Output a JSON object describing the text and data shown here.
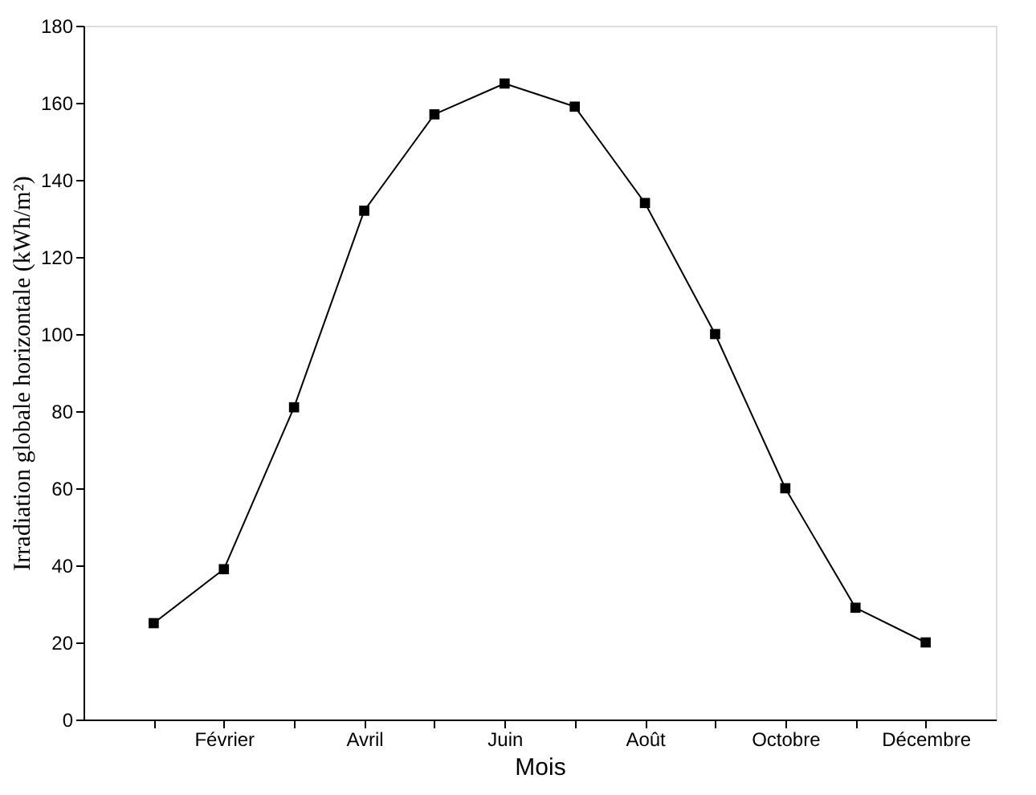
{
  "chart_data": {
    "type": "line",
    "xlabel": "Mois",
    "ylabel": "Irradiation globale horizontale (kWh/m²)",
    "categories": [
      null,
      "Février",
      null,
      "Avril",
      null,
      "Juin",
      null,
      "Août",
      null,
      "Octobre",
      null,
      "Décembre"
    ],
    "series": [
      {
        "color": "#000000",
        "values": [
          25,
          39,
          81,
          132,
          157,
          165,
          159,
          134,
          100,
          60,
          29,
          20
        ]
      }
    ],
    "ylim": [
      0,
      180
    ],
    "yticks": [
      0,
      20,
      40,
      60,
      80,
      100,
      120,
      140,
      160,
      180
    ],
    "marker": "square",
    "line_style": "solid",
    "grid": false
  }
}
